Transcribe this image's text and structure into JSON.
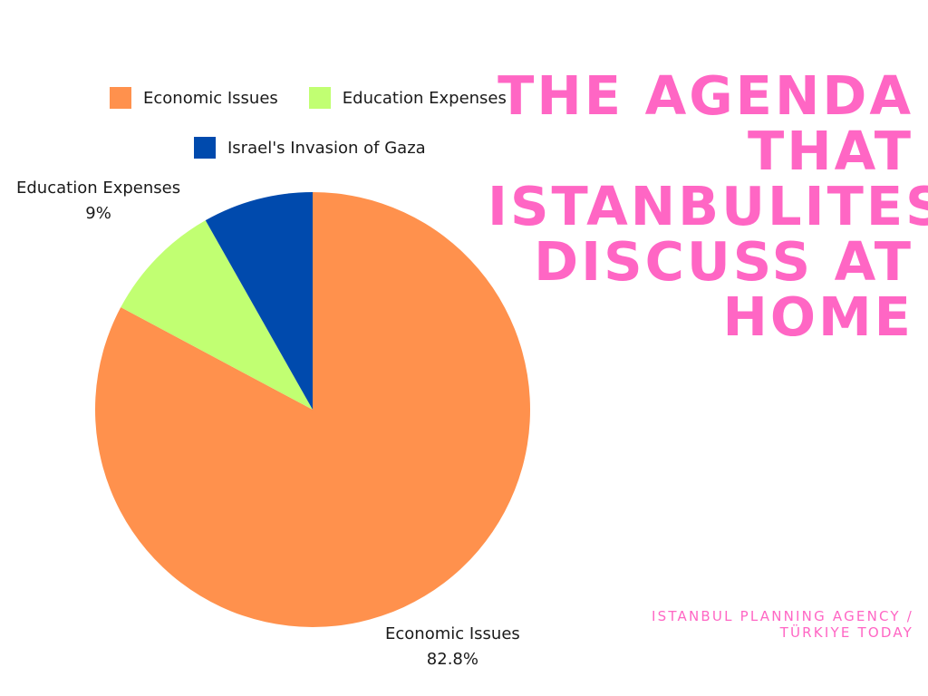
{
  "title": "The Agenda That Istanbulites Discuss at Home",
  "source": {
    "line1": "ISTANBUL PLANNING AGENCY /",
    "line2": "TÜRKIYE TODAY"
  },
  "legend": {
    "items": [
      {
        "label": "Economic Issues",
        "color": "#ff914d"
      },
      {
        "label": "Education Expenses",
        "color": "#c1ff72"
      },
      {
        "label": "Israel's Invasion of Gaza",
        "color": "#004aad"
      }
    ]
  },
  "chart_data": {
    "type": "pie",
    "title": "The Agenda That Istanbulites Discuss at Home",
    "categories": [
      "Economic Issues",
      "Education Expenses",
      "Israel's Invasion of Gaza"
    ],
    "values": [
      82.8,
      9,
      8.2
    ],
    "colors": [
      "#ff914d",
      "#c1ff72",
      "#004aad"
    ],
    "data_labels": [
      {
        "category": "Economic Issues",
        "text": "82.8%"
      },
      {
        "category": "Education Expenses",
        "text": "9%"
      }
    ],
    "legend_position": "top"
  }
}
